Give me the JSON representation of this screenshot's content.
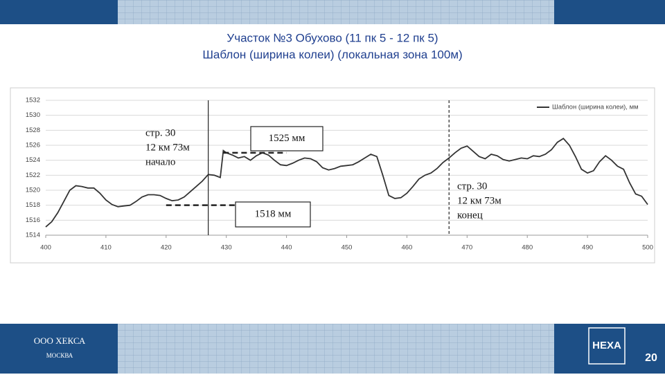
{
  "header": {
    "title": [
      "Участок №3 Обухово (11 пк 5 - 12 пк 5)",
      "Шаблон (ширина колеи) (локальная зона 100м)"
    ]
  },
  "footer": {
    "company": "ООО ХЕКСА",
    "city": "МОСКВА",
    "logo": "HEXA",
    "page": "20"
  },
  "chart_data": {
    "type": "line",
    "x": [
      400,
      401,
      402,
      403,
      404,
      405,
      406,
      407,
      408,
      409,
      410,
      411,
      412,
      413,
      414,
      415,
      416,
      417,
      418,
      419,
      420,
      421,
      422,
      423,
      424,
      425,
      426,
      427,
      428,
      429,
      429.5,
      430,
      431,
      432,
      433,
      434,
      435,
      436,
      437,
      438,
      439,
      440,
      441,
      442,
      443,
      444,
      445,
      446,
      447,
      448,
      449,
      450,
      451,
      452,
      453,
      454,
      455,
      456,
      457,
      458,
      459,
      460,
      461,
      462,
      463,
      464,
      465,
      466,
      467,
      468,
      469,
      470,
      471,
      472,
      473,
      474,
      475,
      476,
      477,
      478,
      479,
      480,
      481,
      482,
      483,
      484,
      485,
      486,
      487,
      488,
      489,
      490,
      491,
      492,
      493,
      494,
      495,
      496,
      497,
      498,
      499,
      500
    ],
    "series": [
      {
        "name": "Шаблон (ширина колеи), мм",
        "color": "#333333",
        "values": [
          1515.1,
          1515.8,
          1517,
          1518.5,
          1520,
          1520.6,
          1520.5,
          1520.3,
          1520.3,
          1519.6,
          1518.7,
          1518.1,
          1517.8,
          1517.9,
          1518,
          1518.5,
          1519.1,
          1519.4,
          1519.4,
          1519.3,
          1518.9,
          1518.6,
          1518.7,
          1519.1,
          1519.8,
          1520.5,
          1521.2,
          1522.1,
          1522,
          1521.7,
          1525.3,
          1525,
          1524.7,
          1524.3,
          1524.5,
          1524,
          1524.6,
          1525,
          1524.7,
          1524,
          1523.4,
          1523.3,
          1523.6,
          1524,
          1524.3,
          1524.2,
          1523.8,
          1523,
          1522.7,
          1522.9,
          1523.2,
          1523.3,
          1523.4,
          1523.8,
          1524.3,
          1524.8,
          1524.5,
          1522,
          1519.3,
          1518.9,
          1519,
          1519.6,
          1520.5,
          1521.5,
          1522,
          1522.3,
          1522.9,
          1523.7,
          1524.3,
          1525,
          1525.6,
          1525.9,
          1525.2,
          1524.5,
          1524.2,
          1524.8,
          1524.6,
          1524.1,
          1523.9,
          1524.1,
          1524.3,
          1524.2,
          1524.6,
          1524.5,
          1524.8,
          1525.4,
          1526.4,
          1526.9,
          1526,
          1524.5,
          1522.8,
          1522.3,
          1522.6,
          1523.8,
          1524.6,
          1524,
          1523.2,
          1522.8,
          1521,
          1519.5,
          1519.2,
          1518.1
        ]
      }
    ],
    "xlim": [
      400,
      500
    ],
    "xticks": [
      400,
      410,
      420,
      430,
      440,
      450,
      460,
      470,
      480,
      490,
      500
    ],
    "ylim": [
      1514,
      1532
    ],
    "yticks": [
      1514,
      1516,
      1518,
      1520,
      1522,
      1524,
      1526,
      1528,
      1530,
      1532
    ],
    "grid": true,
    "legend": "upper right",
    "vlines": [
      {
        "x": 427,
        "style": "solid",
        "text": [
          "стр. 30",
          "12 км 73м",
          "начало"
        ]
      },
      {
        "x": 467,
        "style": "dashed",
        "text": [
          "стр. 30",
          "12 км 73м",
          "конец"
        ]
      }
    ],
    "hlines": [
      {
        "y": 1525,
        "label": "1525 мм",
        "x": [
          429.5,
          440
        ]
      },
      {
        "y": 1518,
        "label": "1518 мм",
        "x": [
          420,
          432
        ]
      }
    ]
  }
}
